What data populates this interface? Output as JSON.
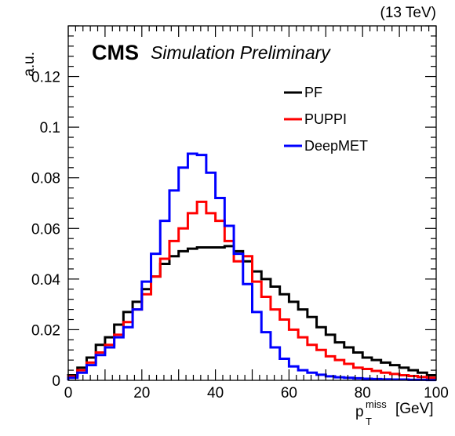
{
  "chart_data": {
    "type": "line",
    "title": "",
    "experiment": "CMS",
    "subtitle": "Simulation Preliminary",
    "energy_label": "(13 TeV)",
    "xlabel": {
      "main": "p",
      "sub": "T",
      "sup": "miss",
      "unit": "[GeV]"
    },
    "ylabel": "a.u.",
    "xlim": [
      0,
      100
    ],
    "ylim": [
      0,
      0.14
    ],
    "x_ticks": [
      0,
      20,
      40,
      60,
      80,
      100
    ],
    "y_ticks": [
      0,
      0.02,
      0.04,
      0.06,
      0.08,
      0.1,
      0.12
    ],
    "x_tick_labels": [
      "0",
      "20",
      "40",
      "60",
      "80",
      "100"
    ],
    "y_tick_labels": [
      "0",
      "0.02",
      "0.04",
      "0.06",
      "0.08",
      "0.1",
      "0.12"
    ],
    "grid": false,
    "legend_position": "top-right",
    "bin_edges": [
      0,
      2.5,
      5,
      7.5,
      10,
      12.5,
      15,
      17.5,
      20,
      22.5,
      25,
      27.5,
      30,
      32.5,
      35,
      37.5,
      40,
      42.5,
      45,
      47.5,
      50,
      52.5,
      55,
      57.5,
      60,
      62.5,
      65,
      67.5,
      70,
      72.5,
      75,
      77.5,
      80,
      82.5,
      85,
      87.5,
      90,
      92.5,
      95,
      97.5,
      100
    ],
    "series": [
      {
        "name": "PF",
        "color": "#000000",
        "values": [
          0.002,
          0.005,
          0.009,
          0.014,
          0.017,
          0.022,
          0.027,
          0.031,
          0.036,
          0.041,
          0.046,
          0.049,
          0.051,
          0.052,
          0.0525,
          0.0525,
          0.0525,
          0.053,
          0.051,
          0.047,
          0.043,
          0.04,
          0.037,
          0.034,
          0.031,
          0.028,
          0.025,
          0.021,
          0.018,
          0.015,
          0.013,
          0.011,
          0.009,
          0.008,
          0.007,
          0.006,
          0.005,
          0.004,
          0.003,
          0.002
        ]
      },
      {
        "name": "PUPPI",
        "color": "#ff0000",
        "values": [
          0.0015,
          0.004,
          0.007,
          0.011,
          0.014,
          0.018,
          0.023,
          0.028,
          0.034,
          0.041,
          0.048,
          0.055,
          0.06,
          0.066,
          0.0705,
          0.066,
          0.063,
          0.055,
          0.047,
          0.049,
          0.039,
          0.033,
          0.028,
          0.024,
          0.02,
          0.017,
          0.014,
          0.012,
          0.0095,
          0.008,
          0.0065,
          0.005,
          0.0045,
          0.0037,
          0.003,
          0.0025,
          0.002,
          0.0017,
          0.0013,
          0.001
        ]
      },
      {
        "name": "DeepMET",
        "color": "#0000ff",
        "values": [
          0.001,
          0.003,
          0.006,
          0.01,
          0.013,
          0.017,
          0.021,
          0.028,
          0.039,
          0.05,
          0.063,
          0.075,
          0.084,
          0.0895,
          0.089,
          0.082,
          0.072,
          0.061,
          0.05,
          0.038,
          0.027,
          0.019,
          0.013,
          0.0085,
          0.0055,
          0.004,
          0.003,
          0.0022,
          0.0016,
          0.0012,
          0.001,
          0.0008,
          0.0006,
          0.0005,
          0.0004,
          0.0003,
          0.0003,
          0.0002,
          0.0002,
          0.0001
        ]
      }
    ]
  }
}
